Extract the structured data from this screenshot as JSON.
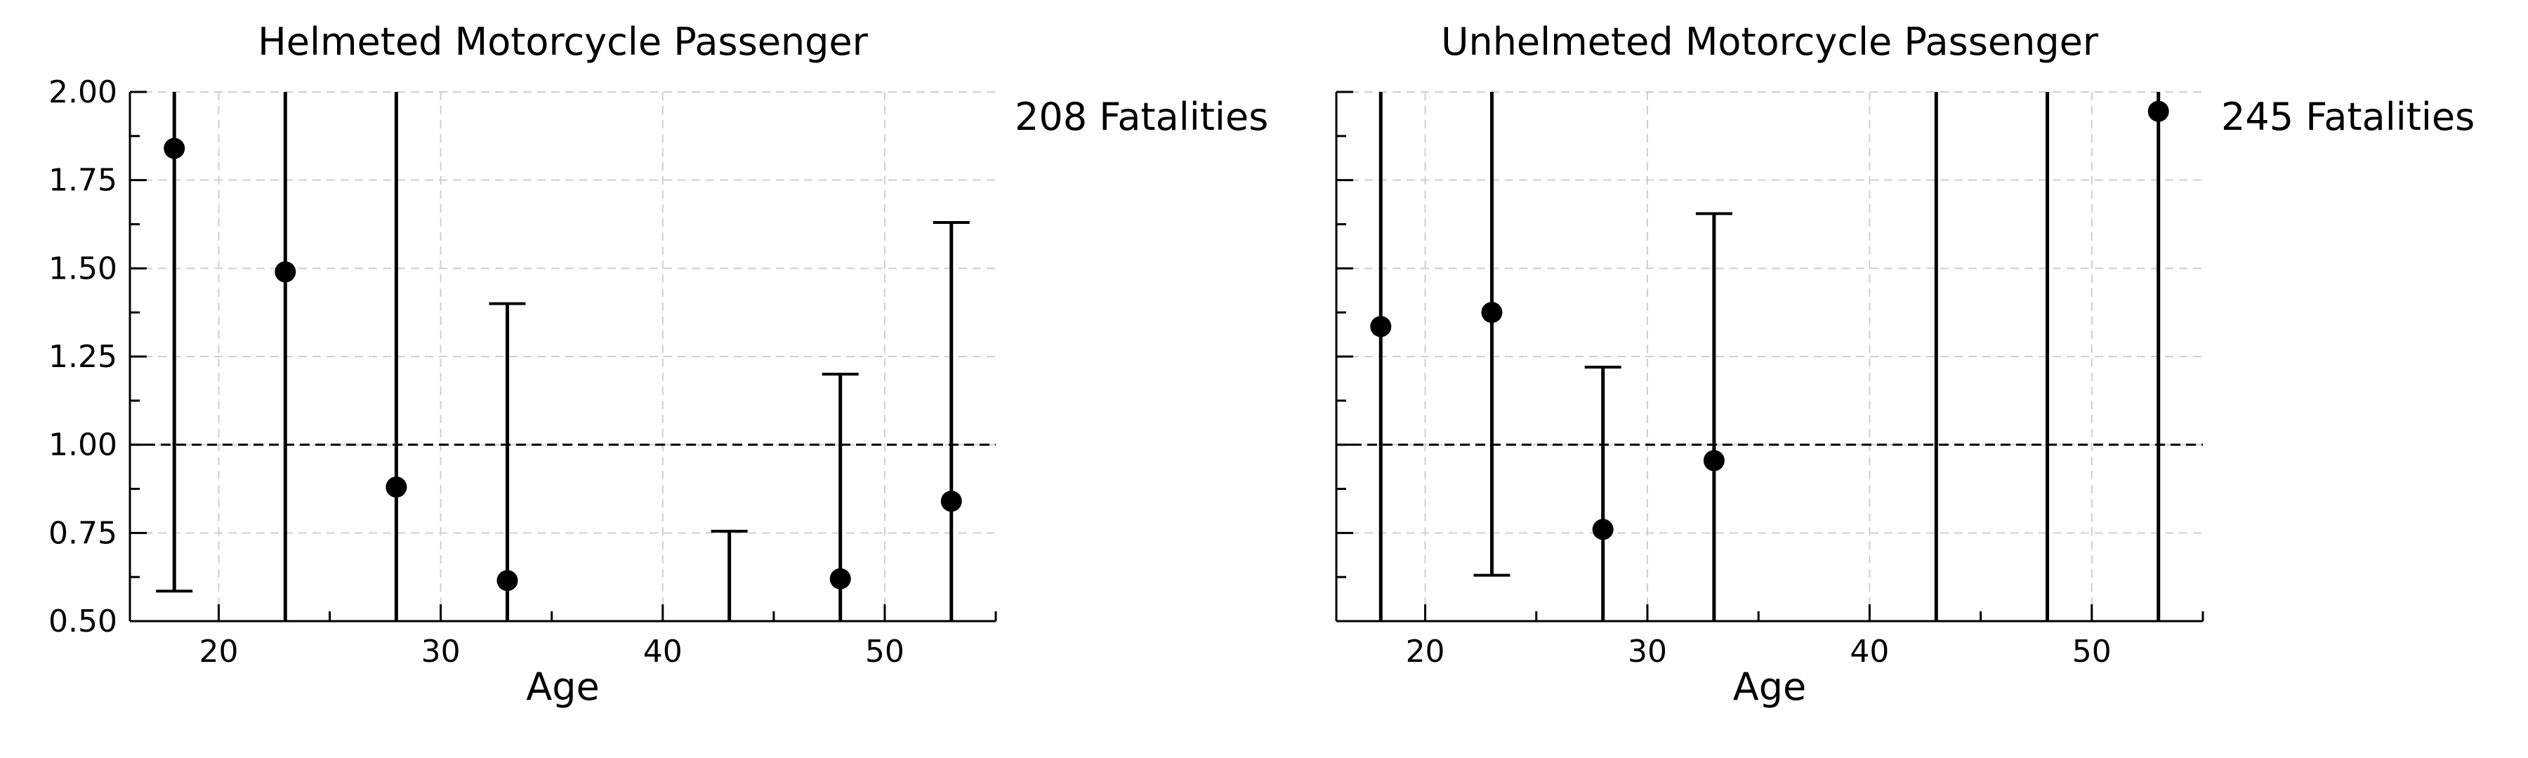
{
  "chart_data": [
    {
      "type": "scatter",
      "title": "Helmeted Motorcycle Passenger",
      "xlabel": "Age",
      "side_label": "208 Fatalities",
      "xlim": [
        16,
        55
      ],
      "ylim": [
        0.5,
        2.0
      ],
      "x_ticks": [
        20,
        30,
        40,
        50
      ],
      "y_ticks": [
        0.5,
        0.75,
        1.0,
        1.25,
        1.5,
        1.75,
        2.0
      ],
      "y_tick_labels": [
        "0.50",
        "0.75",
        "1.00",
        "1.25",
        "1.50",
        "1.75",
        "2.00"
      ],
      "show_y_tick_labels": true,
      "grid": true,
      "reference_line_y": 1.0,
      "points": [
        {
          "x": 18,
          "y": 1.84,
          "lower": 0.585,
          "upper": 2.3
        },
        {
          "x": 23,
          "y": 1.49,
          "lower": 0.4,
          "upper": 2.3
        },
        {
          "x": 28,
          "y": 0.88,
          "lower": 0.4,
          "upper": 2.3
        },
        {
          "x": 33,
          "y": 0.615,
          "lower": 0.4,
          "upper": 1.4
        },
        {
          "x": 43,
          "y": null,
          "lower": 0.4,
          "upper": 0.755
        },
        {
          "x": 48,
          "y": 0.62,
          "lower": 0.4,
          "upper": 1.2
        },
        {
          "x": 53,
          "y": 0.84,
          "lower": 0.4,
          "upper": 1.63
        }
      ]
    },
    {
      "type": "scatter",
      "title": "Unhelmeted Motorcycle Passenger",
      "xlabel": "Age",
      "side_label": "245 Fatalities",
      "xlim": [
        16,
        55
      ],
      "ylim": [
        0.5,
        2.0
      ],
      "x_ticks": [
        20,
        30,
        40,
        50
      ],
      "y_ticks": [
        0.5,
        0.75,
        1.0,
        1.25,
        1.5,
        1.75,
        2.0
      ],
      "y_tick_labels": [
        "",
        "",
        "",
        "",
        "",
        "",
        ""
      ],
      "show_y_tick_labels": false,
      "grid": true,
      "reference_line_y": 1.0,
      "points": [
        {
          "x": 18,
          "y": 1.335,
          "lower": 0.4,
          "upper": 2.3
        },
        {
          "x": 23,
          "y": 1.375,
          "lower": 0.63,
          "upper": 2.3
        },
        {
          "x": 28,
          "y": 0.76,
          "lower": 0.4,
          "upper": 1.22
        },
        {
          "x": 33,
          "y": 0.955,
          "lower": 0.4,
          "upper": 1.655
        },
        {
          "x": 43,
          "y": null,
          "lower": 0.4,
          "upper": 2.3
        },
        {
          "x": 48,
          "y": null,
          "lower": 0.4,
          "upper": 2.3
        },
        {
          "x": 53,
          "y": 1.945,
          "lower": 0.4,
          "upper": 2.3
        }
      ]
    }
  ]
}
